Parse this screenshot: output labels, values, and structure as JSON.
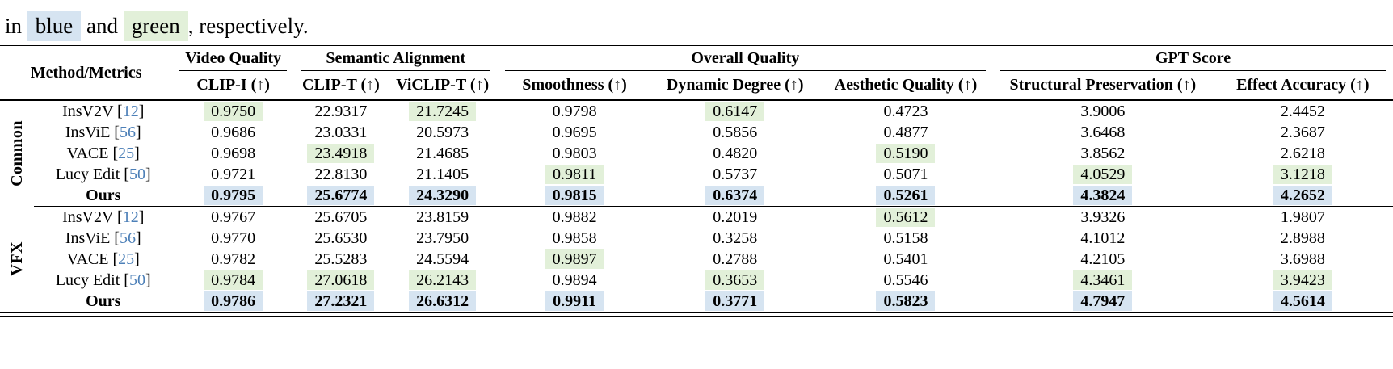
{
  "caption": {
    "part1": "in",
    "blue_word": "blue",
    "part2": "and",
    "green_word": "green",
    "part3": ", respectively."
  },
  "colors": {
    "highlight_blue": "#d6e4f1",
    "highlight_green": "#e2f0d9",
    "citation_blue": "#4d80b8"
  },
  "table": {
    "corner_header": "Method/Metrics",
    "groups": [
      {
        "label": "Video Quality",
        "cols": [
          "CLIP-I (↑)"
        ]
      },
      {
        "label": "Semantic Alignment",
        "cols": [
          "CLIP-T (↑)",
          "ViCLIP-T (↑)"
        ]
      },
      {
        "label": "Overall Quality",
        "cols": [
          "Smoothness (↑)",
          "Dynamic Degree (↑)",
          "Aesthetic Quality (↑)"
        ]
      },
      {
        "label": "GPT Score",
        "cols": [
          "Structural Preservation (↑)",
          "Effect Accuracy (↑)"
        ]
      }
    ],
    "row_groups": [
      {
        "label": "Common",
        "rows": [
          {
            "method": "InsV2V",
            "cite": "12",
            "bold": false,
            "values": [
              "0.9750",
              "22.9317",
              "21.7245",
              "0.9798",
              "0.6147",
              "0.4723",
              "3.9006",
              "2.4452"
            ],
            "hl": [
              "green",
              "",
              "green",
              "",
              "green",
              "",
              "",
              ""
            ]
          },
          {
            "method": "InsViE",
            "cite": "56",
            "bold": false,
            "values": [
              "0.9686",
              "23.0331",
              "20.5973",
              "0.9695",
              "0.5856",
              "0.4877",
              "3.6468",
              "2.3687"
            ],
            "hl": [
              "",
              "",
              "",
              "",
              "",
              "",
              "",
              ""
            ]
          },
          {
            "method": "VACE",
            "cite": "25",
            "bold": false,
            "values": [
              "0.9698",
              "23.4918",
              "21.4685",
              "0.9803",
              "0.4820",
              "0.5190",
              "3.8562",
              "2.6218"
            ],
            "hl": [
              "",
              "green",
              "",
              "",
              "",
              "green",
              "",
              ""
            ]
          },
          {
            "method": "Lucy Edit",
            "cite": "50",
            "bold": false,
            "values": [
              "0.9721",
              "22.8130",
              "21.1405",
              "0.9811",
              "0.5737",
              "0.5071",
              "4.0529",
              "3.1218"
            ],
            "hl": [
              "",
              "",
              "",
              "green",
              "",
              "",
              "green",
              "green"
            ]
          },
          {
            "method": "Ours",
            "cite": "",
            "bold": true,
            "values": [
              "0.9795",
              "25.6774",
              "24.3290",
              "0.9815",
              "0.6374",
              "0.5261",
              "4.3824",
              "4.2652"
            ],
            "hl": [
              "blue",
              "blue",
              "blue",
              "blue",
              "blue",
              "blue",
              "blue",
              "blue"
            ]
          }
        ]
      },
      {
        "label": "VFX",
        "rows": [
          {
            "method": "InsV2V",
            "cite": "12",
            "bold": false,
            "values": [
              "0.9767",
              "25.6705",
              "23.8159",
              "0.9882",
              "0.2019",
              "0.5612",
              "3.9326",
              "1.9807"
            ],
            "hl": [
              "",
              "",
              "",
              "",
              "",
              "green",
              "",
              ""
            ]
          },
          {
            "method": "InsViE",
            "cite": "56",
            "bold": false,
            "values": [
              "0.9770",
              "25.6530",
              "23.7950",
              "0.9858",
              "0.3258",
              "0.5158",
              "4.1012",
              "2.8988"
            ],
            "hl": [
              "",
              "",
              "",
              "",
              "",
              "",
              "",
              ""
            ]
          },
          {
            "method": "VACE",
            "cite": "25",
            "bold": false,
            "values": [
              "0.9782",
              "25.5283",
              "24.5594",
              "0.9897",
              "0.2788",
              "0.5401",
              "4.2105",
              "3.6988"
            ],
            "hl": [
              "",
              "",
              "",
              "green",
              "",
              "",
              "",
              ""
            ]
          },
          {
            "method": "Lucy Edit",
            "cite": "50",
            "bold": false,
            "values": [
              "0.9784",
              "27.0618",
              "26.2143",
              "0.9894",
              "0.3653",
              "0.5546",
              "4.3461",
              "3.9423"
            ],
            "hl": [
              "green",
              "green",
              "green",
              "",
              "green",
              "",
              "green",
              "green"
            ]
          },
          {
            "method": "Ours",
            "cite": "",
            "bold": true,
            "values": [
              "0.9786",
              "27.2321",
              "26.6312",
              "0.9911",
              "0.3771",
              "0.5823",
              "4.7947",
              "4.5614"
            ],
            "hl": [
              "blue",
              "blue",
              "blue",
              "blue",
              "blue",
              "blue",
              "blue",
              "blue"
            ]
          }
        ]
      }
    ]
  }
}
